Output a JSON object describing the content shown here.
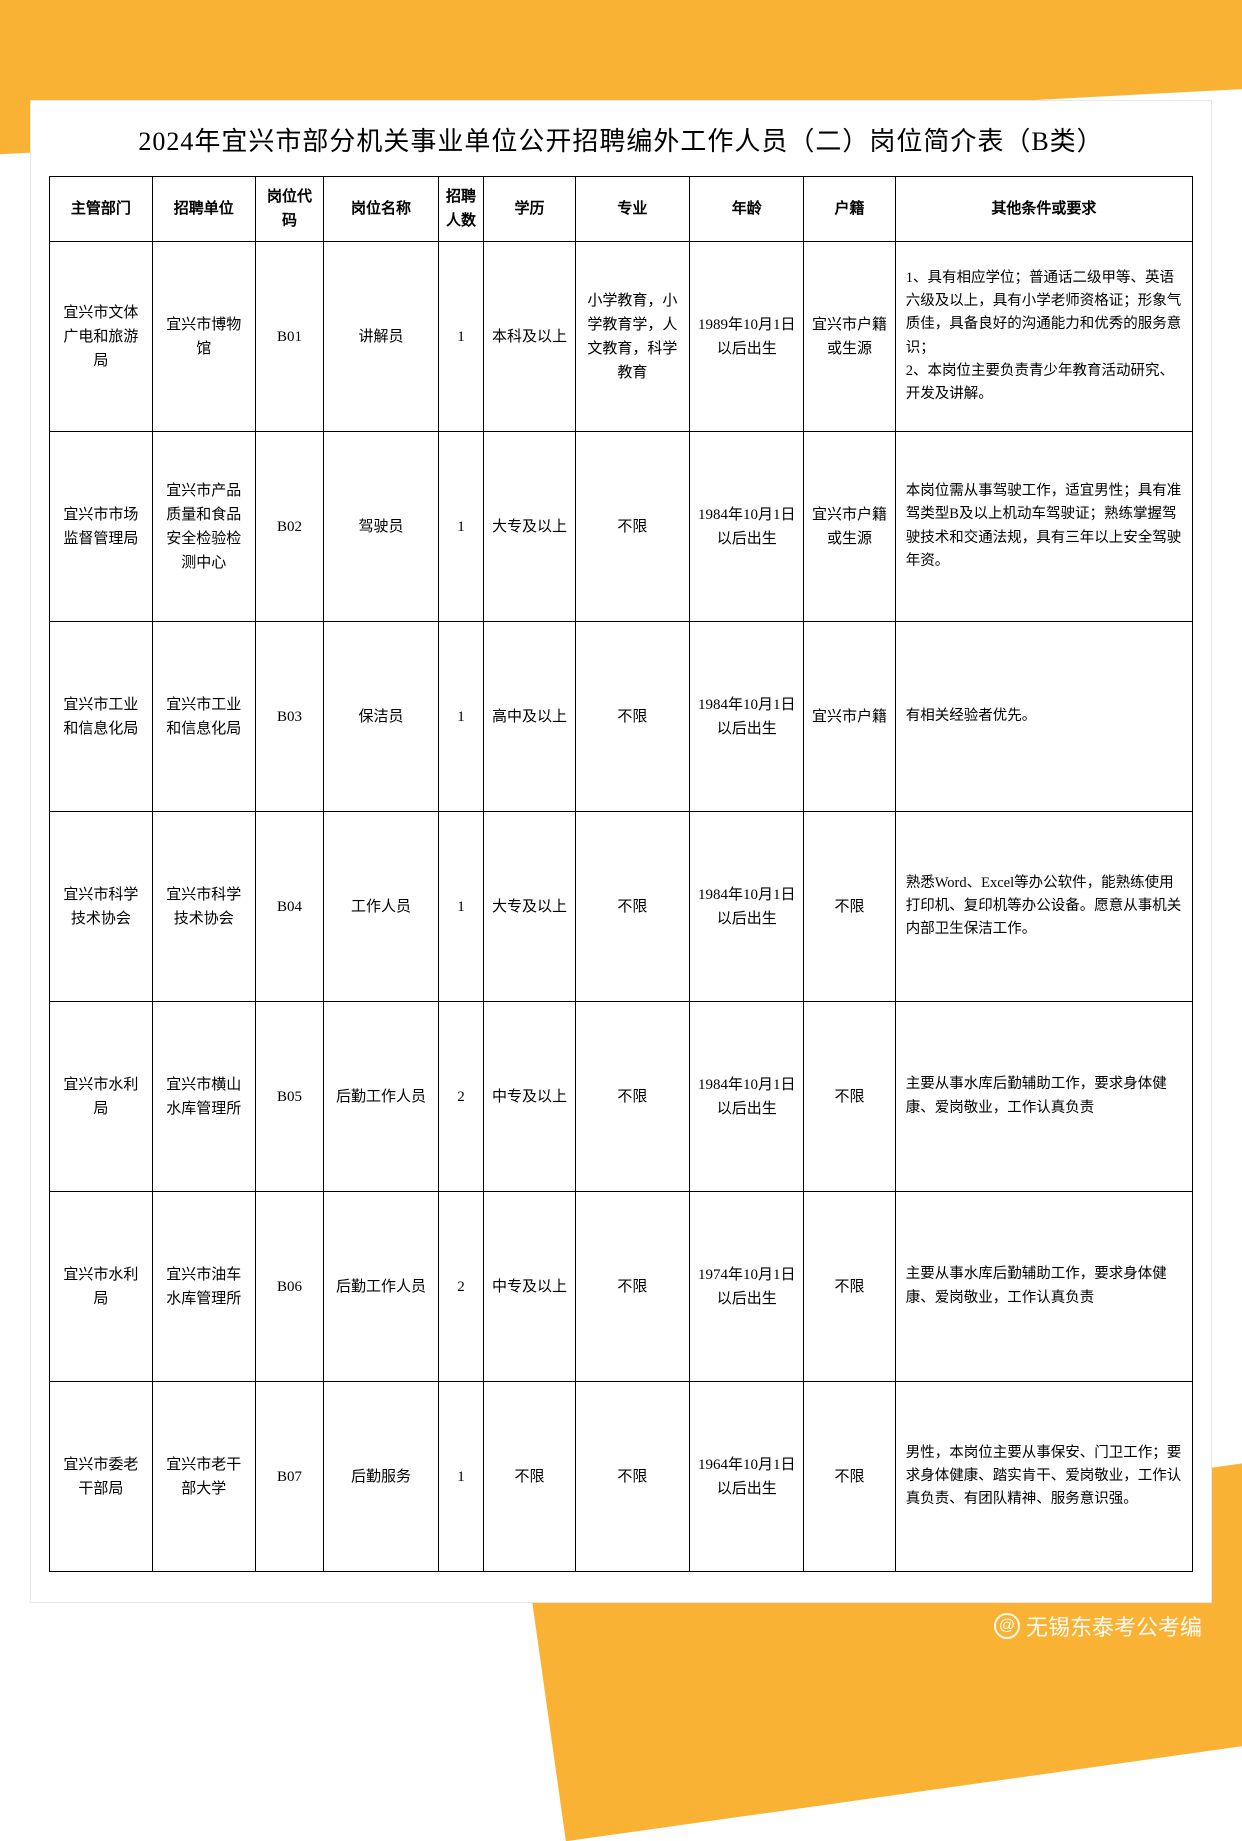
{
  "title": "2024年宜兴市部分机关事业单位公开招聘编外工作人员（二）岗位简介表（B类）",
  "headers": {
    "dept": "主管部门",
    "unit": "招聘单位",
    "code": "岗位代码",
    "position": "岗位名称",
    "count": "招聘人数",
    "education": "学历",
    "major": "专业",
    "age": "年龄",
    "huji": "户籍",
    "requirements": "其他条件或要求"
  },
  "rows": [
    {
      "dept": "宜兴市文体广电和旅游局",
      "unit": "宜兴市博物馆",
      "code": "B01",
      "position": "讲解员",
      "count": "1",
      "education": "本科及以上",
      "major": "小学教育，小学教育学，人文教育，科学教育",
      "age": "1989年10月1日以后出生",
      "huji": "宜兴市户籍或生源",
      "requirements": "1、具有相应学位；普通话二级甲等、英语六级及以上，具有小学老师资格证；形象气质佳，具备良好的沟通能力和优秀的服务意识；\n2、本岗位主要负责青少年教育活动研究、开发及讲解。"
    },
    {
      "dept": "宜兴市市场监督管理局",
      "unit": "宜兴市产品质量和食品安全检验检测中心",
      "code": "B02",
      "position": "驾驶员",
      "count": "1",
      "education": "大专及以上",
      "major": "不限",
      "age": "1984年10月1日以后出生",
      "huji": "宜兴市户籍或生源",
      "requirements": "本岗位需从事驾驶工作，适宜男性；具有准驾类型B及以上机动车驾驶证；熟练掌握驾驶技术和交通法规，具有三年以上安全驾驶年资。"
    },
    {
      "dept": "宜兴市工业和信息化局",
      "unit": "宜兴市工业和信息化局",
      "code": "B03",
      "position": "保洁员",
      "count": "1",
      "education": "高中及以上",
      "major": "不限",
      "age": "1984年10月1日以后出生",
      "huji": "宜兴市户籍",
      "requirements": "有相关经验者优先。"
    },
    {
      "dept": "宜兴市科学技术协会",
      "unit": "宜兴市科学技术协会",
      "code": "B04",
      "position": "工作人员",
      "count": "1",
      "education": "大专及以上",
      "major": "不限",
      "age": "1984年10月1日以后出生",
      "huji": "不限",
      "requirements": "熟悉Word、Excel等办公软件，能熟练使用打印机、复印机等办公设备。愿意从事机关内部卫生保洁工作。"
    },
    {
      "dept": "宜兴市水利局",
      "unit": "宜兴市横山水库管理所",
      "code": "B05",
      "position": "后勤工作人员",
      "count": "2",
      "education": "中专及以上",
      "major": "不限",
      "age": "1984年10月1日以后出生",
      "huji": "不限",
      "requirements": "主要从事水库后勤辅助工作，要求身体健康、爱岗敬业，工作认真负责"
    },
    {
      "dept": "宜兴市水利局",
      "unit": "宜兴市油车水库管理所",
      "code": "B06",
      "position": "后勤工作人员",
      "count": "2",
      "education": "中专及以上",
      "major": "不限",
      "age": "1974年10月1日以后出生",
      "huji": "不限",
      "requirements": "主要从事水库后勤辅助工作，要求身体健康、爱岗敬业，工作认真负责"
    },
    {
      "dept": "宜兴市委老干部局",
      "unit": "宜兴市老干部大学",
      "code": "B07",
      "position": "后勤服务",
      "count": "1",
      "education": "不限",
      "major": "不限",
      "age": "1964年10月1日以后出生",
      "huji": "不限",
      "requirements": "男性，本岗位主要从事保安、门卫工作；要求身体健康、踏实肯干、爱岗敬业，工作认真负责、有团队精神、服务意识强。"
    }
  ],
  "watermark": "@无锡东泰考公考编",
  "colors": {
    "accent": "#f9b233",
    "border": "#000000",
    "text": "#000000",
    "background": "#ffffff"
  }
}
